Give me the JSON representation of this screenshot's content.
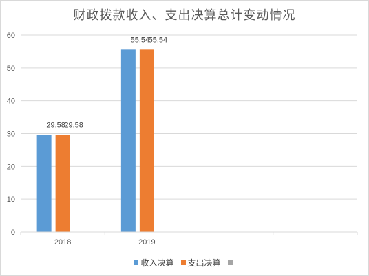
{
  "chart_data": {
    "type": "bar",
    "title": "财政拨款收入、支出决算总计变动情况",
    "categories": [
      "2018",
      "2019",
      "",
      ""
    ],
    "series": [
      {
        "name": "收入决算",
        "color": "#5b9bd5",
        "values": [
          29.58,
          55.54,
          null,
          null
        ],
        "labels": [
          "29.58",
          "55.54",
          "",
          ""
        ]
      },
      {
        "name": "支出决算",
        "color": "#ed7d31",
        "values": [
          29.58,
          55.54,
          null,
          null
        ],
        "labels": [
          "29.58",
          "55.54",
          "",
          ""
        ]
      },
      {
        "name": "",
        "color": "#a5a5a5",
        "values": [
          null,
          null,
          null,
          null
        ],
        "labels": [
          "",
          "",
          "",
          ""
        ]
      }
    ],
    "ylim": [
      0,
      60
    ],
    "yticks": [
      0,
      10,
      20,
      30,
      40,
      50,
      60
    ],
    "grid": true,
    "legend": "bottom"
  }
}
